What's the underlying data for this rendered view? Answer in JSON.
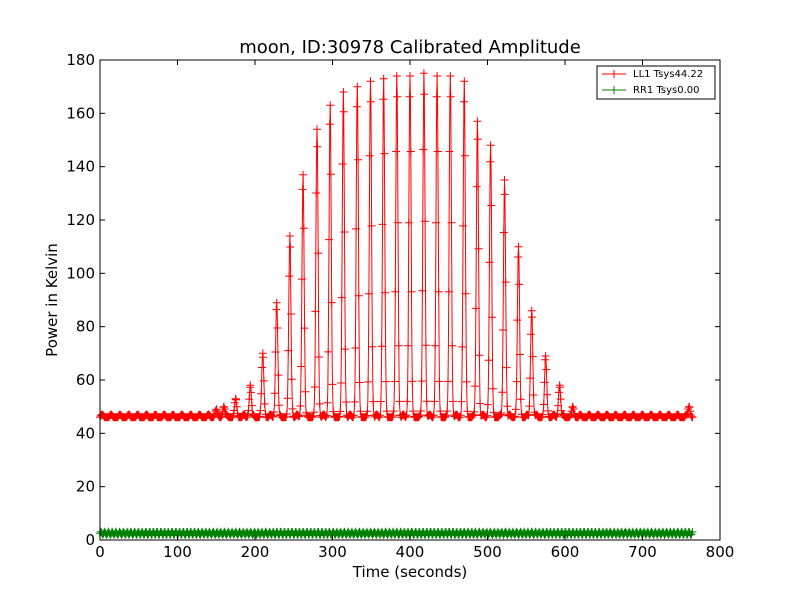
{
  "chart_data": {
    "type": "line",
    "title": "moon, ID:30978 Calibrated Amplitude",
    "xlabel": "Time (seconds)",
    "ylabel": "Power in Kelvin",
    "xlim": [
      0,
      800
    ],
    "ylim": [
      0,
      180
    ],
    "xticks": [
      "0",
      "100",
      "200",
      "300",
      "400",
      "500",
      "600",
      "700",
      "800"
    ],
    "yticks": [
      "0",
      "20",
      "40",
      "60",
      "80",
      "100",
      "120",
      "140",
      "160",
      "180"
    ],
    "grid": false,
    "legend_position": "top-right",
    "marker": "+",
    "x_end": 765,
    "scan": {
      "baseline": 46,
      "baseline_ripple": 1.5,
      "peaks": [
        {
          "x": 150,
          "y": 49
        },
        {
          "x": 160,
          "y": 50
        },
        {
          "x": 175,
          "y": 53
        },
        {
          "x": 194,
          "y": 58
        },
        {
          "x": 210,
          "y": 70
        },
        {
          "x": 228,
          "y": 89
        },
        {
          "x": 245,
          "y": 114
        },
        {
          "x": 262,
          "y": 137
        },
        {
          "x": 280,
          "y": 154
        },
        {
          "x": 297,
          "y": 163
        },
        {
          "x": 314,
          "y": 168
        },
        {
          "x": 332,
          "y": 170
        },
        {
          "x": 349,
          "y": 172
        },
        {
          "x": 366,
          "y": 173
        },
        {
          "x": 383,
          "y": 174
        },
        {
          "x": 400,
          "y": 174
        },
        {
          "x": 418,
          "y": 175
        },
        {
          "x": 435,
          "y": 174
        },
        {
          "x": 452,
          "y": 174
        },
        {
          "x": 470,
          "y": 172
        },
        {
          "x": 487,
          "y": 157
        },
        {
          "x": 504,
          "y": 148
        },
        {
          "x": 522,
          "y": 135
        },
        {
          "x": 540,
          "y": 110
        },
        {
          "x": 557,
          "y": 86
        },
        {
          "x": 575,
          "y": 69
        },
        {
          "x": 593,
          "y": 58
        },
        {
          "x": 610,
          "y": 50
        },
        {
          "x": 760,
          "y": 50
        }
      ]
    },
    "series": [
      {
        "name": "LL1 Tsys44.22",
        "color": "#ff0000",
        "level": 46
      },
      {
        "name": "RR1 Tsys0.00",
        "color": "#008000",
        "level": 2.5
      }
    ]
  }
}
